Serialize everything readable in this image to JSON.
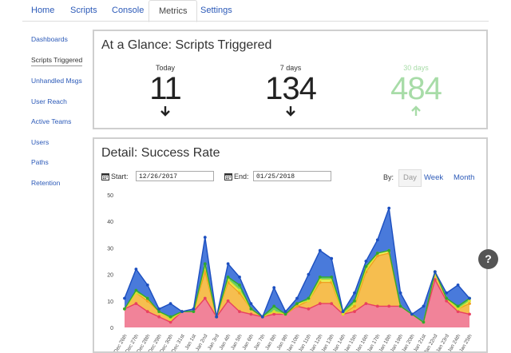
{
  "nav": {
    "tabs": [
      {
        "label": "Home"
      },
      {
        "label": "Scripts"
      },
      {
        "label": "Console"
      },
      {
        "label": "Metrics"
      },
      {
        "label": "Settings"
      }
    ],
    "active": "Metrics"
  },
  "sidebar": {
    "items": [
      {
        "label": "Dashboards"
      },
      {
        "label": "Scripts Triggered"
      },
      {
        "label": "Unhandled Msgs"
      },
      {
        "label": "User Reach"
      },
      {
        "label": "Active Teams"
      },
      {
        "label": "Users"
      },
      {
        "label": "Paths"
      },
      {
        "label": "Retention"
      }
    ],
    "active": "Scripts Triggered"
  },
  "glance": {
    "title": "At a Glance: Scripts Triggered",
    "stats": [
      {
        "label": "Today",
        "value": "11",
        "trend": "down",
        "color": "#222222"
      },
      {
        "label": "7 days",
        "value": "134",
        "trend": "down",
        "color": "#222222"
      },
      {
        "label": "30 days",
        "value": "484",
        "trend": "up",
        "color": "#a8dca8"
      }
    ]
  },
  "detail": {
    "title": "Detail: Success Rate",
    "start_label": "Start:",
    "start_value": "12/26/2017",
    "end_label": "End:",
    "end_value": "01/25/2018",
    "by_label": "By:",
    "by_options": [
      "Day",
      "Week",
      "Month"
    ],
    "by_selected": "Day"
  },
  "help_label": "?",
  "colors": {
    "link": "#2c5ab8",
    "blue": "#3a6fd8",
    "green": "#5ac85a",
    "yellow": "#e8f050",
    "orange": "#f5b840",
    "pink": "#f07890",
    "red": "#e84060"
  },
  "chart_data": {
    "type": "area",
    "stacked": true,
    "ylim": [
      0,
      50
    ],
    "yticks": [
      0,
      10,
      20,
      30,
      40,
      50
    ],
    "categories": [
      "Dec 26th",
      "Dec 27th",
      "Dec 28th",
      "Dec 29th",
      "Dec 30th",
      "Dec 31st",
      "Jan 1st",
      "Jan 2nd",
      "Jan 3rd",
      "Jan 4th",
      "Jan 5th",
      "Jan 6th",
      "Jan 7th",
      "Jan 8th",
      "Jan 9th",
      "Jan 10th",
      "Jan 11th",
      "Jan 12th",
      "Jan 13th",
      "Jan 14th",
      "Jan 15th",
      "Jan 16th",
      "Jan 17th",
      "Jan 18th",
      "Jan 19th",
      "Jan 20th",
      "Jan 21st",
      "Jan 22nd",
      "Jan 23rd",
      "Jan 24th",
      "Jan 25th"
    ],
    "series": [
      {
        "values": [
          7,
          9,
          6,
          4,
          2,
          6,
          6,
          11,
          4,
          10,
          6,
          5,
          4,
          5,
          5,
          8,
          7,
          9,
          9,
          5,
          6,
          9,
          8,
          8,
          8,
          5,
          2,
          18,
          10,
          6,
          5
        ]
      },
      {
        "values": [
          0,
          4,
          4,
          2,
          1,
          0,
          0,
          10,
          0,
          7,
          7,
          2,
          0,
          1,
          0,
          0,
          3,
          8,
          8,
          0,
          2,
          12,
          19,
          20,
          0,
          0,
          0,
          3,
          1,
          1,
          4
        ]
      },
      {
        "values": [
          0,
          0,
          1,
          0,
          0,
          0,
          0,
          2,
          0,
          1,
          1,
          0,
          0,
          0,
          0,
          1,
          0,
          1,
          1,
          0,
          1,
          1,
          1,
          1,
          0,
          0,
          0,
          0,
          0,
          0,
          1
        ]
      },
      {
        "values": [
          0,
          1,
          0,
          0,
          1,
          0,
          0,
          1,
          0,
          1,
          2,
          0,
          0,
          2,
          0,
          0,
          1,
          1,
          1,
          1,
          1,
          1,
          0,
          0,
          0,
          0,
          0,
          0,
          0,
          1,
          1
        ]
      },
      {
        "values": [
          4,
          8,
          5,
          1,
          5,
          0,
          1,
          10,
          0,
          5,
          3,
          2,
          0,
          7,
          1,
          2,
          9,
          10,
          7,
          0,
          3,
          2,
          5,
          16,
          5,
          0,
          6,
          0,
          2,
          8,
          0
        ]
      }
    ]
  }
}
